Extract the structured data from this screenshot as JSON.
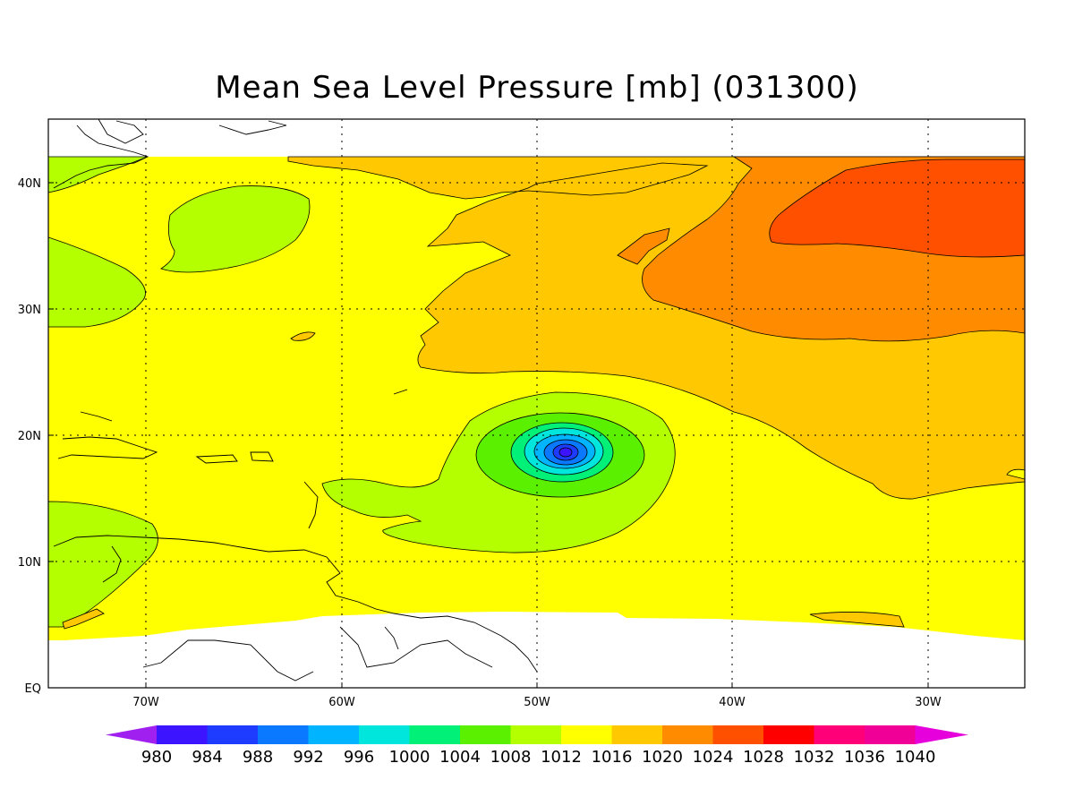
{
  "title": "Mean Sea Level Pressure [mb] (031300)",
  "axes": {
    "x_ticks": [
      "70W",
      "60W",
      "50W",
      "40W",
      "30W"
    ],
    "y_ticks": [
      "EQ",
      "10N",
      "20N",
      "30N",
      "40N"
    ]
  },
  "colorbar": {
    "labels": [
      "980",
      "984",
      "988",
      "992",
      "996",
      "1000",
      "1004",
      "1008",
      "1012",
      "1016",
      "1020",
      "1024",
      "1028",
      "1032",
      "1036",
      "1040"
    ],
    "colors": [
      "#a020f0",
      "#3c14ff",
      "#1e3cff",
      "#0a78ff",
      "#00b4ff",
      "#00e6dc",
      "#00f078",
      "#5af000",
      "#b4ff00",
      "#ffff00",
      "#ffc800",
      "#ff8c00",
      "#ff5000",
      "#ff0000",
      "#ff0078",
      "#f00096",
      "#e600dc"
    ]
  },
  "chart_data": {
    "type": "heatmap",
    "variable": "Mean Sea Level Pressure",
    "units": "mb",
    "valid_time": "031300",
    "lon_range": [
      -75,
      -25
    ],
    "lat_range": [
      0,
      45
    ],
    "levels": [
      980,
      984,
      988,
      992,
      996,
      1000,
      1004,
      1008,
      1012,
      1016,
      1020,
      1024,
      1028,
      1032,
      1036,
      1040
    ],
    "features": [
      {
        "kind": "low",
        "center_lon": -48.7,
        "center_lat": 18.7,
        "min_pressure_mb": 988
      },
      {
        "kind": "high",
        "center_lon": -30,
        "center_lat": 37,
        "max_pressure_mb": 1028
      }
    ]
  }
}
